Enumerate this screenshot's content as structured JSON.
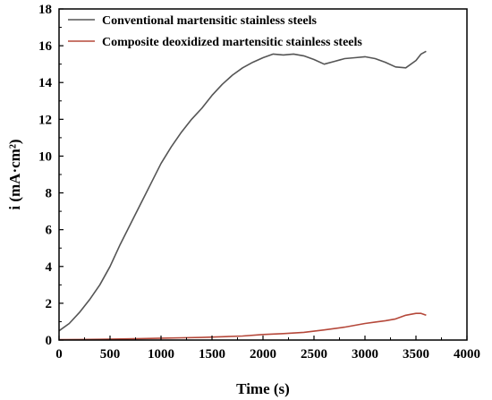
{
  "chart_data": {
    "type": "line",
    "xlabel": "Time (s)",
    "ylabel": "i (mA·cm²)",
    "xlim": [
      0,
      4000
    ],
    "ylim": [
      0,
      18
    ],
    "x_ticks": [
      "0",
      "500",
      "1000",
      "1500",
      "2000",
      "2500",
      "3000",
      "3500",
      "4000"
    ],
    "y_ticks": [
      "0",
      "2",
      "4",
      "6",
      "8",
      "10",
      "12",
      "14",
      "16",
      "18"
    ],
    "grid": false,
    "legend_position": "top-left",
    "series": [
      {
        "name": "Conventional martensitic stainless steels",
        "color": "#555555",
        "x": [
          0,
          100,
          200,
          300,
          400,
          500,
          600,
          700,
          800,
          900,
          1000,
          1100,
          1200,
          1300,
          1400,
          1500,
          1600,
          1700,
          1800,
          1900,
          2000,
          2100,
          2200,
          2300,
          2400,
          2500,
          2600,
          2700,
          2800,
          2900,
          3000,
          3100,
          3200,
          3300,
          3400,
          3500,
          3550,
          3600
        ],
        "y": [
          0.5,
          0.9,
          1.5,
          2.2,
          3.0,
          4.0,
          5.2,
          6.3,
          7.4,
          8.5,
          9.6,
          10.5,
          11.3,
          12.0,
          12.6,
          13.3,
          13.9,
          14.4,
          14.8,
          15.1,
          15.35,
          15.55,
          15.5,
          15.55,
          15.45,
          15.25,
          15.0,
          15.15,
          15.3,
          15.35,
          15.4,
          15.3,
          15.1,
          14.85,
          14.8,
          15.2,
          15.55,
          15.7
        ]
      },
      {
        "name": "Composite deoxidized martensitic stainless steels",
        "color": "#b5483a",
        "x": [
          0,
          200,
          400,
          600,
          800,
          1000,
          1200,
          1400,
          1600,
          1800,
          2000,
          2200,
          2400,
          2600,
          2800,
          3000,
          3100,
          3200,
          3300,
          3400,
          3500,
          3550,
          3600
        ],
        "y": [
          0.02,
          0.03,
          0.04,
          0.06,
          0.08,
          0.1,
          0.12,
          0.14,
          0.18,
          0.22,
          0.3,
          0.35,
          0.42,
          0.55,
          0.7,
          0.9,
          0.98,
          1.05,
          1.15,
          1.35,
          1.45,
          1.45,
          1.35
        ]
      }
    ]
  }
}
